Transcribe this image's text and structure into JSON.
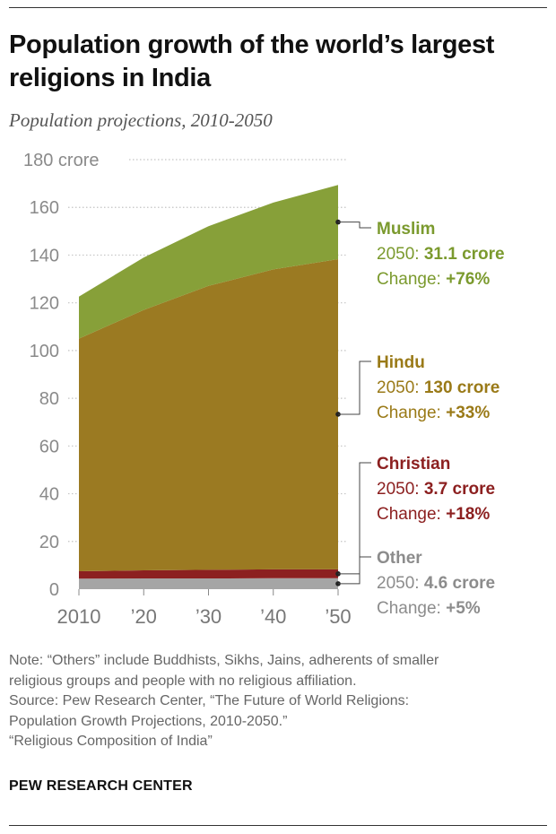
{
  "title": "Population growth of the world’s largest religions in India",
  "subtitle": "Population projections, 2010-2050",
  "chart_data": {
    "type": "area",
    "stacked": true,
    "x": [
      "2010",
      "’20",
      "’30",
      "’40",
      "’50"
    ],
    "ylim": [
      0,
      180
    ],
    "yticks": [
      0,
      20,
      40,
      60,
      80,
      100,
      120,
      140,
      160,
      180
    ],
    "ytick_labels": [
      "0",
      "20",
      "40",
      "60",
      "80",
      "100",
      "120",
      "140",
      "160",
      "180 crore"
    ],
    "series": [
      {
        "name": "Other",
        "color": "#a5a5a5",
        "values": [
          4.4,
          4.5,
          4.5,
          4.6,
          4.6
        ]
      },
      {
        "name": "Christian",
        "color": "#8c2020",
        "values": [
          3.1,
          3.4,
          3.6,
          3.7,
          3.7
        ]
      },
      {
        "name": "Hindu",
        "color": "#9b7a22",
        "values": [
          97.5,
          109.1,
          119.0,
          125.7,
          130.0
        ]
      },
      {
        "name": "Muslim",
        "color": "#87a039",
        "values": [
          17.6,
          22.0,
          25.0,
          28.0,
          31.1
        ]
      }
    ],
    "labels": [
      {
        "name": "Muslim",
        "text_color": "#7b9a2e",
        "line1_prefix": "2050: ",
        "line1_value": "31.1 crore",
        "line2_prefix": "Change: ",
        "line2_value": "+76%"
      },
      {
        "name": "Hindu",
        "text_color": "#9a7a18",
        "line1_prefix": "2050: ",
        "line1_value": "130 crore",
        "line2_prefix": "Change: ",
        "line2_value": "+33%"
      },
      {
        "name": "Christian",
        "text_color": "#8c2020",
        "line1_prefix": "2050: ",
        "line1_value": "3.7 crore",
        "line2_prefix": "Change: ",
        "line2_value": "+18%"
      },
      {
        "name": "Other",
        "text_color": "#8c8c8c",
        "line1_prefix": "2050: ",
        "line1_value": "4.6 crore",
        "line2_prefix": "Change: ",
        "line2_value": "+5%"
      }
    ]
  },
  "notes": [
    "Note: “Others” include Buddhists, Sikhs, Jains, adherents of smaller",
    "religious groups and people with no religious affiliation.",
    "Source: Pew Research Center, “The Future of World Religions:",
    "Population Growth Projections, 2010-2050.”",
    "“Religious Composition of India”"
  ],
  "brand": "PEW RESEARCH CENTER"
}
